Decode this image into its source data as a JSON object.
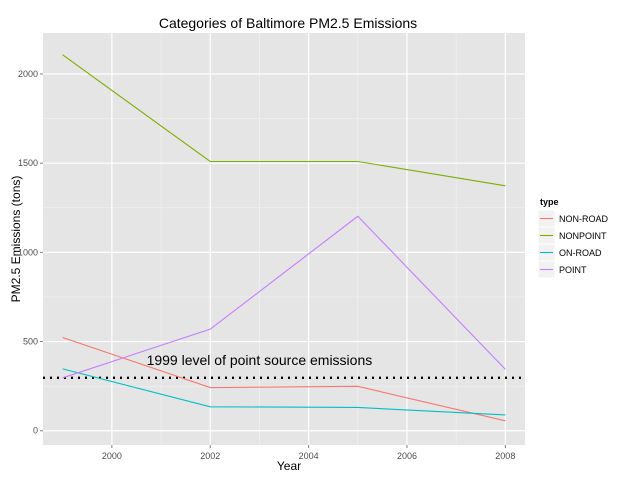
{
  "chart_data": {
    "type": "line",
    "title": "Categories of Baltimore PM2.5 Emissions",
    "xlabel": "Year",
    "ylabel": "PM2.5 Emissions (tons)",
    "x": [
      1999,
      2002,
      2005,
      2008
    ],
    "xlim": [
      1998.6,
      2008.4
    ],
    "ylim": [
      -80,
      2230
    ],
    "x_ticks": [
      2000,
      2002,
      2004,
      2006,
      2008
    ],
    "y_ticks": [
      0,
      500,
      1000,
      1500,
      2000
    ],
    "grid": true,
    "legend": {
      "title": "type",
      "position": "right"
    },
    "series": [
      {
        "name": "NON-ROAD",
        "color": "#F8766D",
        "values": [
          522.9,
          242.0,
          248.9,
          55.8
        ]
      },
      {
        "name": "NONPOINT",
        "color": "#7CAE00",
        "values": [
          2107.6,
          1509.5,
          1509.5,
          1373.2
        ]
      },
      {
        "name": "ON-ROAD",
        "color": "#00BFC4",
        "values": [
          346.8,
          134.3,
          130.4,
          88.3
        ]
      },
      {
        "name": "POINT",
        "color": "#C77CFF",
        "values": [
          296.8,
          569.3,
          1202.5,
          344.98
        ]
      }
    ],
    "reference_line": {
      "value": 296.8,
      "label": "1999 level of point source emissions",
      "style": "dotted"
    }
  }
}
